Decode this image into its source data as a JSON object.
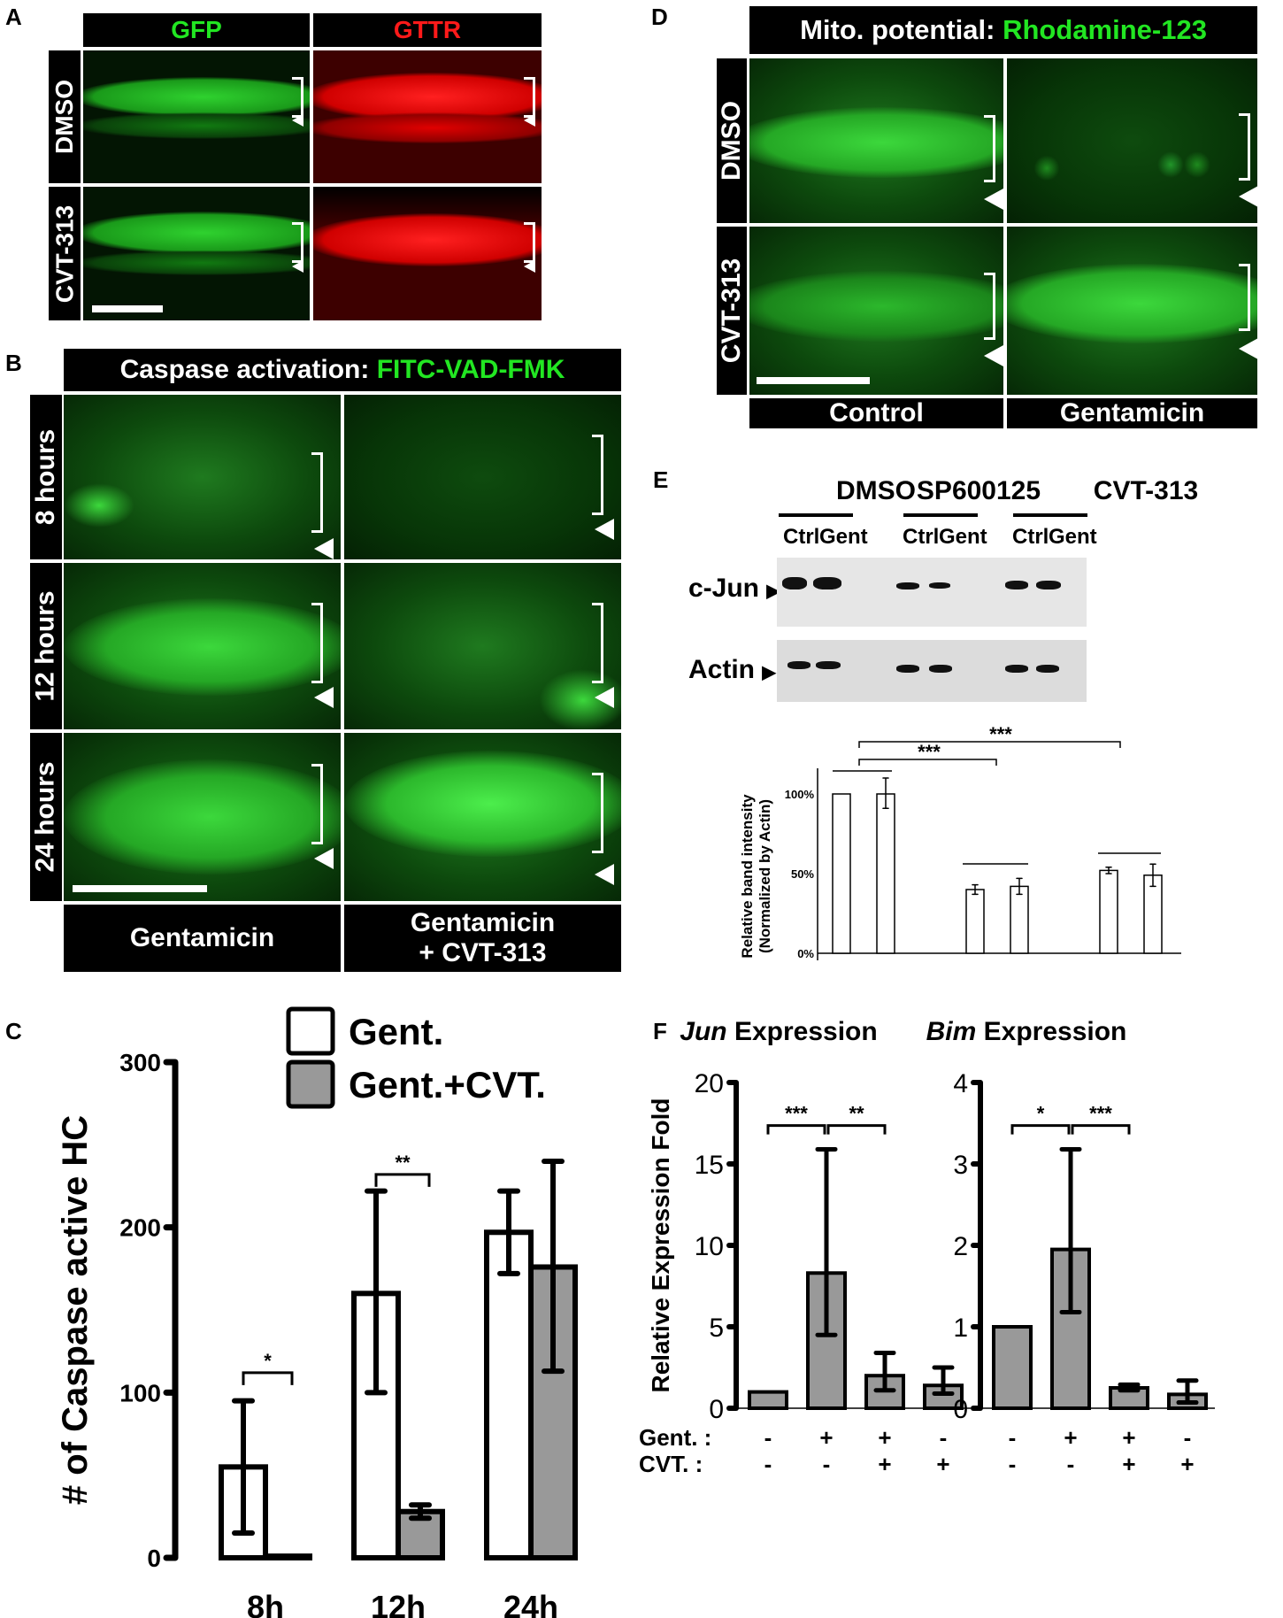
{
  "panels": {
    "A": {
      "label": "A",
      "columns": [
        {
          "label": "GFP",
          "color": "#22e622"
        },
        {
          "label": "GTTR",
          "color": "#ff1a1a"
        }
      ],
      "rows": [
        "DMSO",
        "CVT-313"
      ]
    },
    "B": {
      "label": "B",
      "title_prefix": "Caspase activation: ",
      "title_highlight": "FITC-VAD-FMK",
      "rows": [
        "8 hours",
        "12 hours",
        "24 hours"
      ],
      "columns": [
        "Gentamicin",
        "Gentamicin",
        "+ CVT-313"
      ],
      "column_labels": {
        "left": "Gentamicin",
        "right_line1": "Gentamicin",
        "right_line2": "+ CVT-313"
      }
    },
    "C": {
      "label": "C"
    },
    "D": {
      "label": "D",
      "title_prefix": "Mito. potential: ",
      "title_highlight": "Rhodamine-123",
      "rows": [
        "DMSO",
        "CVT-313"
      ],
      "columns": [
        "Control",
        "Gentamicin"
      ]
    },
    "E": {
      "label": "E",
      "groups": [
        "DMSO",
        "SP600125",
        "CVT-313"
      ],
      "lanes": [
        "Ctrl",
        "Gent",
        "Ctrl",
        "Gent",
        "Ctrl",
        "Gent"
      ],
      "blot_rows": [
        "c-Jun",
        "Actin"
      ],
      "arrow_glyph": "▶"
    },
    "F": {
      "label": "F"
    }
  },
  "chart_data": [
    {
      "id": "C",
      "type": "bar",
      "title": "",
      "xlabel": "",
      "ylabel": "# of Caspase active HC",
      "categories": [
        "8h",
        "12h",
        "24h"
      ],
      "series": [
        {
          "name": "Gent.",
          "color": "#ffffff",
          "values": [
            55,
            160,
            197
          ],
          "err_low": [
            15,
            100,
            172
          ],
          "err_high": [
            95,
            222,
            222
          ]
        },
        {
          "name": "Gent.+CVT.",
          "color": "#999999",
          "values": [
            1,
            28,
            176
          ],
          "err_low": [
            1,
            24,
            113
          ],
          "err_high": [
            1,
            32,
            240
          ]
        }
      ],
      "yticks": [
        "0",
        "100",
        "200",
        "300"
      ],
      "ylim": [
        0,
        300
      ],
      "legend": [
        "Gent.",
        "Gent.+CVT."
      ],
      "legend_position": "top-right",
      "significance": [
        {
          "between": "8h",
          "label": "*"
        },
        {
          "between": "12h",
          "label": "**"
        }
      ],
      "grid": false
    },
    {
      "id": "E",
      "type": "bar",
      "title": "",
      "ylabel": "Relative band intensity (Normalized by Actin)",
      "ylabel_line1": "Relative band intensity",
      "ylabel_line2": "(Normalized by Actin)",
      "categories": [
        "DMSO Ctrl",
        "DMSO Gent",
        "SP600125 Ctrl",
        "SP600125 Gent",
        "CVT-313 Ctrl",
        "CVT-313 Gent"
      ],
      "values": [
        100,
        100,
        40,
        42,
        52,
        49
      ],
      "err_low": [
        100,
        91,
        37,
        37,
        50,
        42
      ],
      "err_high": [
        100,
        110,
        43,
        47,
        54,
        56
      ],
      "yticks": [
        "0%",
        "50%",
        "100%"
      ],
      "ylim": [
        0,
        115
      ],
      "significance": [
        {
          "from": "DMSO",
          "to": "SP600125",
          "label": "***"
        },
        {
          "from": "DMSO",
          "to": "CVT-313",
          "label": "***"
        }
      ],
      "grid": false
    },
    {
      "id": "F-Jun",
      "type": "bar",
      "title_italic": "Jun",
      "title_rest": " Expression",
      "ylabel": "Relative Expression Fold",
      "categories": [
        "Gent-/CVT-",
        "Gent+/CVT-",
        "Gent+/CVT+",
        "Gent-/CVT+"
      ],
      "values": [
        1.0,
        8.3,
        2.0,
        1.4
      ],
      "err_low": [
        1.0,
        4.5,
        1.1,
        0.9
      ],
      "err_high": [
        1.0,
        15.9,
        3.4,
        2.5
      ],
      "yticks": [
        "0",
        "5",
        "10",
        "15",
        "20"
      ],
      "ylim": [
        0,
        20
      ],
      "significance": [
        {
          "from": 0,
          "to": 1,
          "label": "***"
        },
        {
          "from": 1,
          "to": 2,
          "label": "**"
        }
      ],
      "bar_color": "#999999"
    },
    {
      "id": "F-Bim",
      "type": "bar",
      "title_italic": "Bim",
      "title_rest": " Expression",
      "ylabel": "",
      "categories": [
        "Gent-/CVT-",
        "Gent+/CVT-",
        "Gent+/CVT+",
        "Gent-/CVT+"
      ],
      "values": [
        1.0,
        1.95,
        0.25,
        0.17
      ],
      "err_low": [
        1.0,
        1.18,
        0.22,
        0.07
      ],
      "err_high": [
        1.0,
        3.18,
        0.29,
        0.34
      ],
      "yticks": [
        "0",
        "1",
        "2",
        "3",
        "4"
      ],
      "ylim": [
        0,
        4
      ],
      "significance": [
        {
          "from": 0,
          "to": 1,
          "label": "*"
        },
        {
          "from": 1,
          "to": 2,
          "label": "***"
        }
      ],
      "bar_color": "#999999"
    }
  ],
  "f_treatment": {
    "gent_label": "Gent. :",
    "cvt_label": "CVT. :",
    "gent": [
      "-",
      "+",
      "+",
      "-"
    ],
    "cvt": [
      "-",
      "-",
      "+",
      "+"
    ]
  }
}
